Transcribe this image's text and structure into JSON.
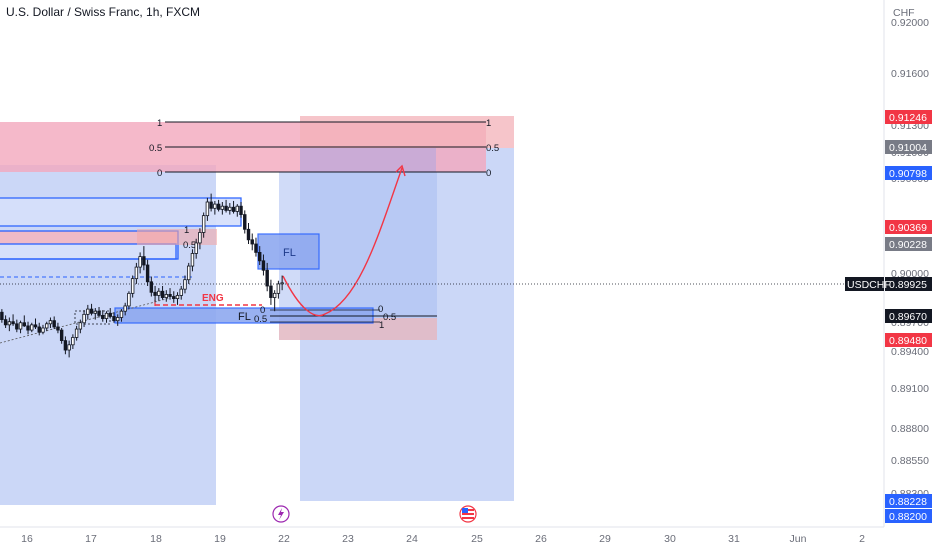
{
  "header": {
    "title": "U.S. Dollar / Swiss Franc, 1h, FXCM",
    "currency": "CHF"
  },
  "symbol": "USDCHF",
  "colors": {
    "up": "#131722",
    "down": "#131722",
    "red_tag": "#f23645",
    "blue_tag": "#2962ff",
    "gray_tag": "#787b86",
    "black_tag": "#131722",
    "zone_red": "#f7a8b8",
    "zone_blue": "#b3c6f5"
  },
  "price_tags": [
    {
      "value": "0.91246",
      "color": "red"
    },
    {
      "value": "0.91004",
      "color": "gray"
    },
    {
      "value": "0.90798",
      "color": "blue"
    },
    {
      "value": "0.90369",
      "color": "red"
    },
    {
      "value": "0.90228",
      "color": "gray"
    },
    {
      "value": "0.89925",
      "color": "black",
      "label": "USDCHF"
    },
    {
      "value": "0.89670",
      "color": "black"
    },
    {
      "value": "0.89480",
      "color": "red"
    },
    {
      "value": "0.88228",
      "color": "blue"
    },
    {
      "value": "0.88200",
      "color": "blue"
    }
  ],
  "drawing_labels": {
    "fl_upper": "FL",
    "fl_lower": "FL",
    "eng": "ENG",
    "fib_top_1": "1",
    "fib_top_05": "0.5",
    "fib_top_0": "0",
    "fib_right_1": "1",
    "fib_right_05": "0.5",
    "fib_right_0": "0",
    "fib_small_1": "1",
    "fib_small_05": "0.5",
    "fib_lower_0": "0",
    "fib_lower_05": "0.5",
    "fib_lower_1": "1"
  },
  "chart_data": {
    "type": "candlestick",
    "title": "U.S. Dollar / Swiss Franc, 1h, FXCM",
    "ylabel": "CHF",
    "ylim": [
      0.881,
      0.9225
    ],
    "y_ticks": [
      "0.92000",
      "0.91600",
      "0.91300",
      "0.91000",
      "0.90600",
      "0.90300",
      "0.90000",
      "0.89700",
      "0.89400",
      "0.89100",
      "0.88800",
      "0.88550",
      "0.88300"
    ],
    "x_ticks": [
      "16",
      "17",
      "18",
      "19",
      "22",
      "23",
      "24",
      "25",
      "26",
      "29",
      "30",
      "31",
      "Jun",
      "2"
    ],
    "last_price": 0.89925,
    "candles": [
      [
        0.8965,
        0.8968,
        0.8955,
        0.8958
      ],
      [
        0.8958,
        0.8962,
        0.895,
        0.8953
      ],
      [
        0.8953,
        0.896,
        0.8947,
        0.8956
      ],
      [
        0.8956,
        0.8963,
        0.8952,
        0.8954
      ],
      [
        0.8954,
        0.8958,
        0.8946,
        0.8949
      ],
      [
        0.8949,
        0.8957,
        0.8945,
        0.8955
      ],
      [
        0.8955,
        0.8962,
        0.8951,
        0.8952
      ],
      [
        0.8952,
        0.8956,
        0.8944,
        0.8948
      ],
      [
        0.8948,
        0.8955,
        0.8946,
        0.8953
      ],
      [
        0.8953,
        0.8959,
        0.8949,
        0.8951
      ],
      [
        0.8951,
        0.8955,
        0.8943,
        0.8946
      ],
      [
        0.8946,
        0.8953,
        0.8944,
        0.895
      ],
      [
        0.895,
        0.8956,
        0.8947,
        0.8954
      ],
      [
        0.8954,
        0.896,
        0.895,
        0.8957
      ],
      [
        0.8957,
        0.8961,
        0.8949,
        0.8951
      ],
      [
        0.8951,
        0.8955,
        0.8945,
        0.8948
      ],
      [
        0.8948,
        0.895,
        0.8935,
        0.8938
      ],
      [
        0.8938,
        0.8942,
        0.8925,
        0.8929
      ],
      [
        0.8929,
        0.8938,
        0.8922,
        0.8934
      ],
      [
        0.8934,
        0.8944,
        0.893,
        0.8941
      ],
      [
        0.8941,
        0.8952,
        0.8938,
        0.8949
      ],
      [
        0.8949,
        0.8958,
        0.8945,
        0.8955
      ],
      [
        0.8955,
        0.8967,
        0.8951,
        0.8963
      ],
      [
        0.8963,
        0.8972,
        0.8958,
        0.8968
      ],
      [
        0.8968,
        0.8973,
        0.8962,
        0.8964
      ],
      [
        0.8964,
        0.8969,
        0.8958,
        0.8966
      ],
      [
        0.8966,
        0.897,
        0.896,
        0.8962
      ],
      [
        0.8962,
        0.8967,
        0.8956,
        0.8959
      ],
      [
        0.8959,
        0.8966,
        0.8955,
        0.8964
      ],
      [
        0.8964,
        0.8969,
        0.8959,
        0.8961
      ],
      [
        0.8961,
        0.8965,
        0.8955,
        0.8957
      ],
      [
        0.8957,
        0.8963,
        0.8952,
        0.896
      ],
      [
        0.896,
        0.8968,
        0.8956,
        0.8966
      ],
      [
        0.8966,
        0.8974,
        0.8962,
        0.8971
      ],
      [
        0.8971,
        0.8985,
        0.8968,
        0.8983
      ],
      [
        0.8983,
        0.9,
        0.8979,
        0.8997
      ],
      [
        0.8997,
        0.9012,
        0.8992,
        0.9008
      ],
      [
        0.9008,
        0.9022,
        0.9002,
        0.9018
      ],
      [
        0.9018,
        0.9028,
        0.9005,
        0.901
      ],
      [
        0.901,
        0.9015,
        0.899,
        0.8994
      ],
      [
        0.8994,
        0.8999,
        0.898,
        0.8984
      ],
      [
        0.8984,
        0.899,
        0.8975,
        0.8981
      ],
      [
        0.8981,
        0.8988,
        0.8976,
        0.8985
      ],
      [
        0.8985,
        0.899,
        0.8977,
        0.8979
      ],
      [
        0.8979,
        0.8986,
        0.8975,
        0.8982
      ],
      [
        0.8982,
        0.8988,
        0.8977,
        0.898
      ],
      [
        0.898,
        0.8985,
        0.8974,
        0.8978
      ],
      [
        0.8978,
        0.8984,
        0.8972,
        0.8981
      ],
      [
        0.8981,
        0.899,
        0.8977,
        0.8987
      ],
      [
        0.8987,
        0.9,
        0.8983,
        0.8996
      ],
      [
        0.8996,
        0.9012,
        0.8992,
        0.9009
      ],
      [
        0.9009,
        0.9025,
        0.9004,
        0.9021
      ],
      [
        0.9021,
        0.9035,
        0.9016,
        0.9031
      ],
      [
        0.9031,
        0.9045,
        0.9025,
        0.9041
      ],
      [
        0.9041,
        0.906,
        0.9036,
        0.9057
      ],
      [
        0.9057,
        0.9074,
        0.9052,
        0.907
      ],
      [
        0.907,
        0.9078,
        0.9061,
        0.9064
      ],
      [
        0.9064,
        0.9071,
        0.9058,
        0.9068
      ],
      [
        0.9068,
        0.9072,
        0.9061,
        0.9063
      ],
      [
        0.9063,
        0.907,
        0.9058,
        0.9066
      ],
      [
        0.9066,
        0.9072,
        0.906,
        0.9062
      ],
      [
        0.9062,
        0.9069,
        0.9058,
        0.9065
      ],
      [
        0.9065,
        0.9071,
        0.9059,
        0.9061
      ],
      [
        0.9061,
        0.9068,
        0.9056,
        0.9066
      ],
      [
        0.9066,
        0.907,
        0.9055,
        0.9058
      ],
      [
        0.9058,
        0.9062,
        0.904,
        0.9044
      ],
      [
        0.9044,
        0.905,
        0.903,
        0.9034
      ],
      [
        0.9034,
        0.904,
        0.9024,
        0.903
      ],
      [
        0.903,
        0.9036,
        0.9018,
        0.9022
      ],
      [
        0.9022,
        0.9028,
        0.901,
        0.9014
      ],
      [
        0.9014,
        0.902,
        0.9,
        0.9005
      ],
      [
        0.9005,
        0.9012,
        0.8985,
        0.899
      ],
      [
        0.899,
        0.8996,
        0.8972,
        0.8979
      ],
      [
        0.8979,
        0.8986,
        0.8966,
        0.8983
      ],
      [
        0.8983,
        0.8995,
        0.8978,
        0.8992
      ],
      [
        0.8992,
        0.9,
        0.8986,
        0.8993
      ]
    ]
  }
}
